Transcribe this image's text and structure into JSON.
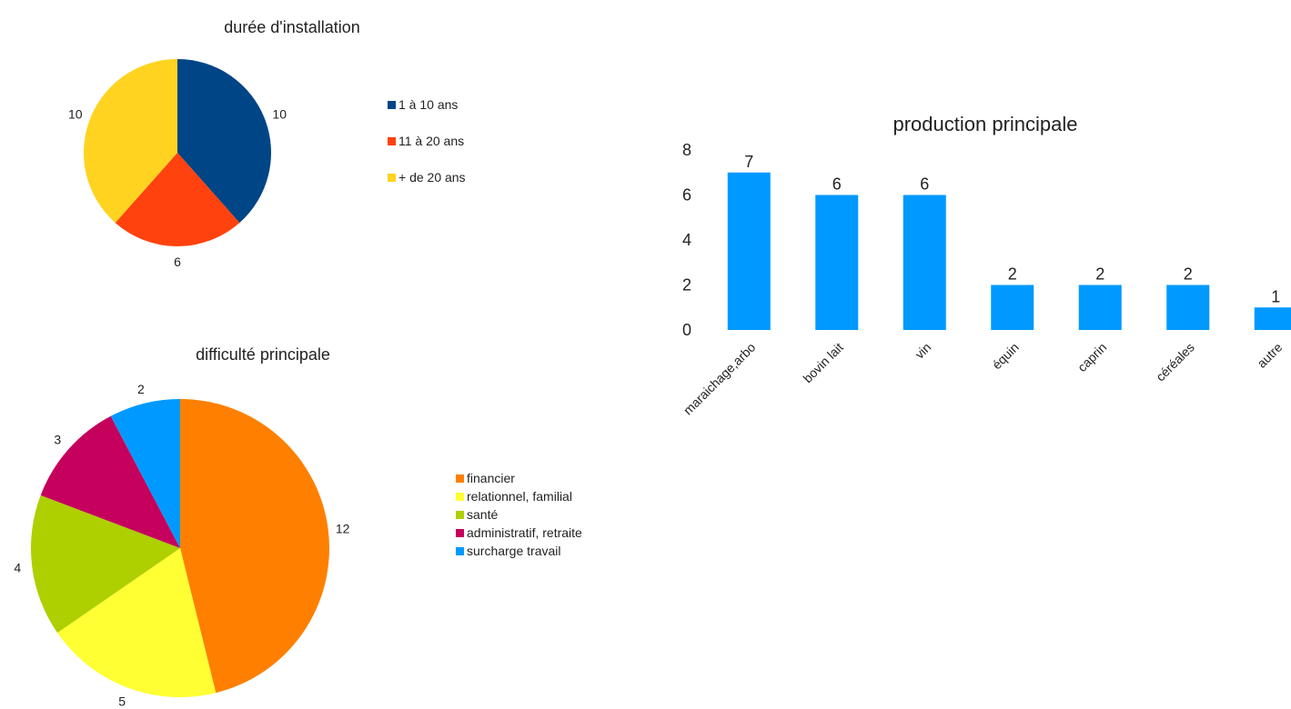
{
  "chart_data": [
    {
      "type": "pie",
      "title": "durée d'installation",
      "categories": [
        "1 à 10 ans",
        "11 à 20 ans",
        "+ de 20 ans"
      ],
      "values": [
        10,
        6,
        10
      ],
      "colors": [
        "#004586",
        "#ff420e",
        "#ffd320"
      ],
      "legend": "right"
    },
    {
      "type": "pie",
      "title": "difficulté principale",
      "categories": [
        "financier",
        "relationnel, familial",
        "santé",
        "administratif, retraite",
        "surcharge travail"
      ],
      "values": [
        12,
        5,
        4,
        3,
        2
      ],
      "colors": [
        "#ff8000",
        "#ffff33",
        "#aecf00",
        "#c5005d",
        "#0099ff"
      ],
      "legend": "right"
    },
    {
      "type": "bar",
      "title": "production principale",
      "categories": [
        "maraichage,arbo",
        "bovin lait",
        "vin",
        "équin",
        "caprin",
        "céréales",
        "autre"
      ],
      "values": [
        7,
        6,
        6,
        2,
        2,
        2,
        1
      ],
      "ylim": [
        0,
        8
      ],
      "yticks": [
        0,
        2,
        4,
        6,
        8
      ],
      "color": "#0099ff",
      "grid": false,
      "legend": "none"
    }
  ]
}
